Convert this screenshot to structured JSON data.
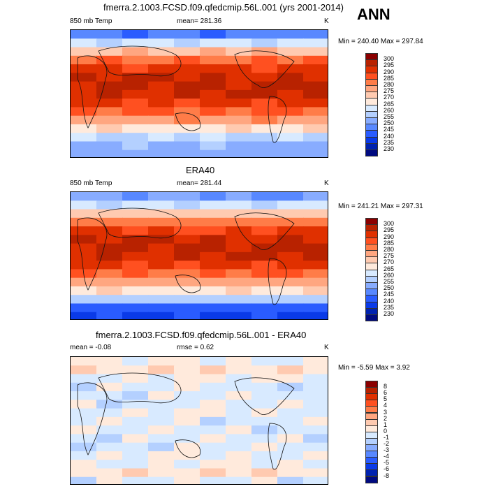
{
  "header": {
    "ann": "ANN"
  },
  "chart_data": [
    {
      "type": "heatmap",
      "title": "fmerra.2.1003.FCSD.f09.qfedcmip.56L.001 (yrs 2001-2014)",
      "left_label": "850 mb Temp",
      "center_label": "mean= 281.36",
      "right_label": "K",
      "minmax": "Min = 240.40 Max = 297.84",
      "levels": [
        "300",
        "295",
        "290",
        "285",
        "280",
        "275",
        "270",
        "265",
        "260",
        "255",
        "250",
        "245",
        "240",
        "235",
        "230"
      ],
      "lat_profile": [
        0.25,
        0.45,
        0.62,
        0.75,
        0.85,
        0.9,
        0.92,
        0.9,
        0.85,
        0.78,
        0.68,
        0.55,
        0.42,
        0.35,
        0.33
      ]
    },
    {
      "type": "heatmap",
      "title": "ERA40",
      "left_label": "850 mb Temp",
      "center_label": "mean= 281.44",
      "right_label": "K",
      "minmax": "Min = 241.21 Max = 297.31",
      "levels": [
        "300",
        "295",
        "290",
        "285",
        "280",
        "275",
        "270",
        "265",
        "260",
        "255",
        "250",
        "245",
        "240",
        "235",
        "230"
      ],
      "lat_profile": [
        0.3,
        0.45,
        0.6,
        0.73,
        0.84,
        0.9,
        0.92,
        0.9,
        0.85,
        0.77,
        0.67,
        0.55,
        0.4,
        0.2,
        0.15
      ]
    },
    {
      "type": "heatmap",
      "title": "fmerra.2.1003.FCSD.f09.qfedcmip.56L.001 - ERA40",
      "left_label": "mean =  -0.08",
      "center_label": "rmse =    0.62",
      "right_label": "K",
      "minmax": "Min =  -5.59 Max =    3.92",
      "levels": [
        "8",
        "6",
        "5",
        "4",
        "3",
        "2",
        "1",
        "0",
        "-1",
        "-2",
        "-3",
        "-4",
        "-5",
        "-6",
        "-8"
      ],
      "lat_profile": [
        0.5,
        0.55,
        0.5,
        0.47,
        0.47,
        0.47,
        0.5,
        0.47,
        0.47,
        0.47,
        0.47,
        0.5,
        0.5,
        0.55,
        0.47
      ]
    }
  ],
  "colormap": [
    "#8b0000",
    "#b82200",
    "#e03000",
    "#ff5020",
    "#ff7c48",
    "#ffa680",
    "#ffcab0",
    "#ffeadc",
    "#d8eaff",
    "#b4d0ff",
    "#88acff",
    "#5888ff",
    "#2a5cff",
    "#0a3ae8",
    "#0022b0",
    "#000a80"
  ]
}
